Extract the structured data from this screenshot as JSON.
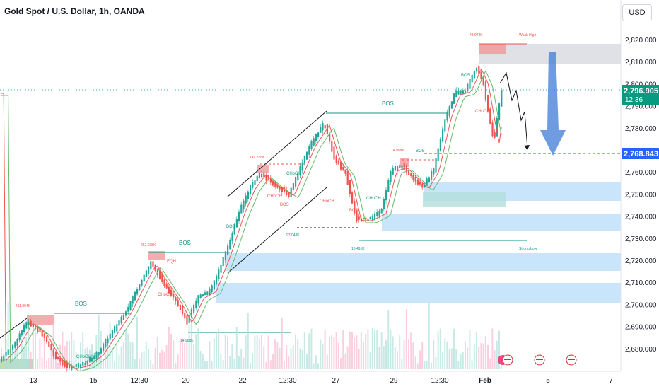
{
  "header": {
    "symbol_title": "Gold Spot / U.S. Dollar, 1h, OANDA",
    "currency": "USD"
  },
  "price_axis": {
    "ticks": [
      "2,820.000",
      "2,810.000",
      "2,800.000",
      "2,790.000",
      "2,780.000",
      "2,770.000",
      "2,760.000",
      "2,750.000",
      "2,740.000",
      "2,730.000",
      "2,720.000",
      "2,710.000",
      "2,700.000",
      "2,690.000",
      "2,680.000"
    ],
    "current_price": "2,796.905",
    "countdown": "12:36",
    "target_price": "2,768.843"
  },
  "time_axis": {
    "ticks": [
      "13",
      "15",
      "12:30",
      "20",
      "22",
      "12:30",
      "27",
      "29",
      "12:30",
      "Feb",
      "5",
      "7"
    ]
  },
  "annotations": {
    "bos": "BOS",
    "choch": "CHoCH",
    "eqh": "EQH",
    "weak_high": "Weak High",
    "strong_low": "Strong Low",
    "vol_411": "411.804K",
    "vol_262": "262.035K",
    "vol_14968": "14.968K",
    "vol_149": "149.876K",
    "vol_97": "97.043K",
    "vol_74": "74.998K",
    "vol_13491": "13.491K",
    "vol_43": "43.973K"
  },
  "colors": {
    "bull": "#26a69a",
    "bear": "#ef5350",
    "zone_blue": "#bbdefb",
    "zone_red": "#ef9a9a",
    "zone_grey": "#d1d4dc",
    "arrow": "#3f7ad6",
    "price_tag": "#089981",
    "target_tag": "#2962ff"
  }
}
